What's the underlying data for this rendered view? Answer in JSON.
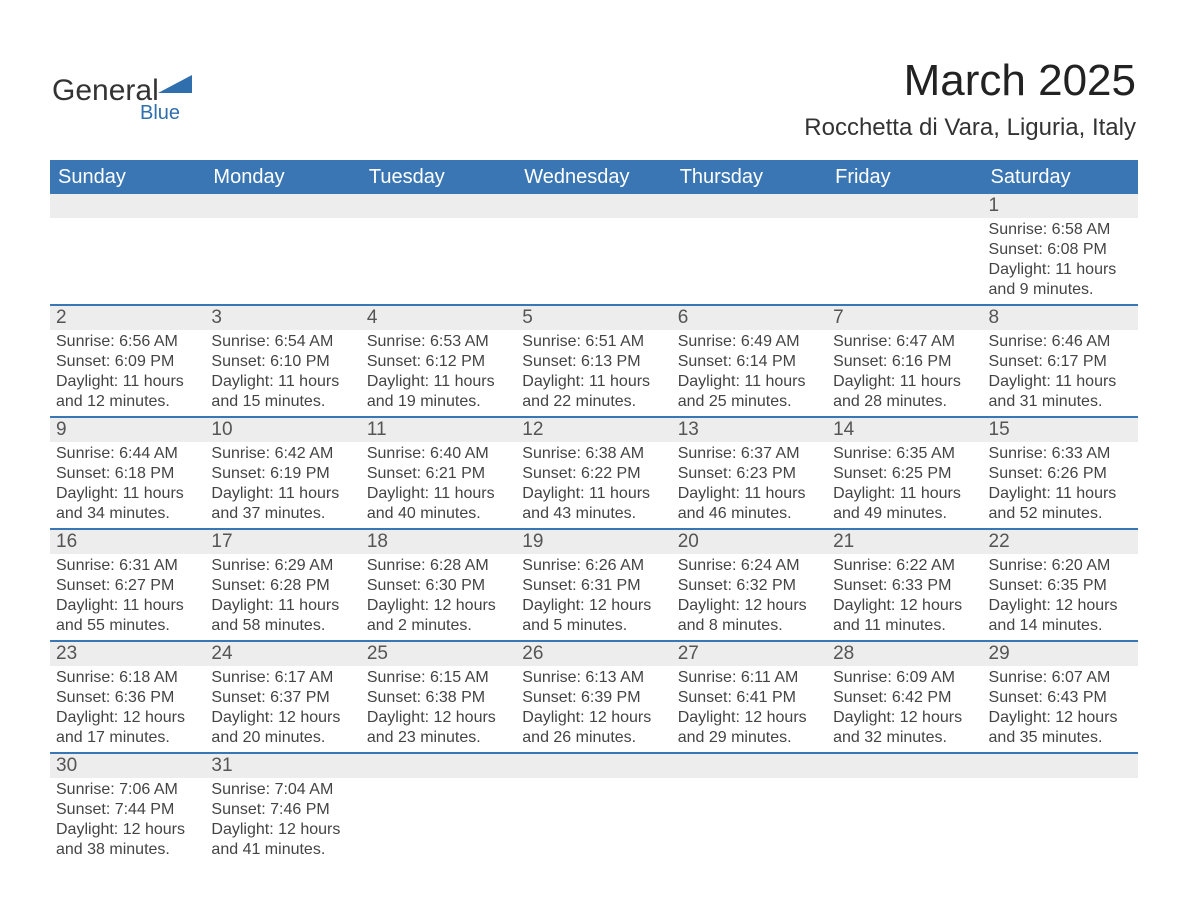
{
  "logo": {
    "text1": "General",
    "text2": "Blue",
    "brand_color": "#2f6fae"
  },
  "title": "March 2025",
  "subtitle": "Rocchetta di Vara, Liguria, Italy",
  "header_bg": "#3a76b3",
  "header_fg": "#ffffff",
  "stripe_bg": "#ededed",
  "divider_color": "#3a76b3",
  "text_color": "#444444",
  "days": [
    "Sunday",
    "Monday",
    "Tuesday",
    "Wednesday",
    "Thursday",
    "Friday",
    "Saturday"
  ],
  "weeks": [
    [
      null,
      null,
      null,
      null,
      null,
      null,
      {
        "n": "1",
        "sr": "6:58 AM",
        "ss": "6:08 PM",
        "dl": "11 hours and 9 minutes."
      }
    ],
    [
      {
        "n": "2",
        "sr": "6:56 AM",
        "ss": "6:09 PM",
        "dl": "11 hours and 12 minutes."
      },
      {
        "n": "3",
        "sr": "6:54 AM",
        "ss": "6:10 PM",
        "dl": "11 hours and 15 minutes."
      },
      {
        "n": "4",
        "sr": "6:53 AM",
        "ss": "6:12 PM",
        "dl": "11 hours and 19 minutes."
      },
      {
        "n": "5",
        "sr": "6:51 AM",
        "ss": "6:13 PM",
        "dl": "11 hours and 22 minutes."
      },
      {
        "n": "6",
        "sr": "6:49 AM",
        "ss": "6:14 PM",
        "dl": "11 hours and 25 minutes."
      },
      {
        "n": "7",
        "sr": "6:47 AM",
        "ss": "6:16 PM",
        "dl": "11 hours and 28 minutes."
      },
      {
        "n": "8",
        "sr": "6:46 AM",
        "ss": "6:17 PM",
        "dl": "11 hours and 31 minutes."
      }
    ],
    [
      {
        "n": "9",
        "sr": "6:44 AM",
        "ss": "6:18 PM",
        "dl": "11 hours and 34 minutes."
      },
      {
        "n": "10",
        "sr": "6:42 AM",
        "ss": "6:19 PM",
        "dl": "11 hours and 37 minutes."
      },
      {
        "n": "11",
        "sr": "6:40 AM",
        "ss": "6:21 PM",
        "dl": "11 hours and 40 minutes."
      },
      {
        "n": "12",
        "sr": "6:38 AM",
        "ss": "6:22 PM",
        "dl": "11 hours and 43 minutes."
      },
      {
        "n": "13",
        "sr": "6:37 AM",
        "ss": "6:23 PM",
        "dl": "11 hours and 46 minutes."
      },
      {
        "n": "14",
        "sr": "6:35 AM",
        "ss": "6:25 PM",
        "dl": "11 hours and 49 minutes."
      },
      {
        "n": "15",
        "sr": "6:33 AM",
        "ss": "6:26 PM",
        "dl": "11 hours and 52 minutes."
      }
    ],
    [
      {
        "n": "16",
        "sr": "6:31 AM",
        "ss": "6:27 PM",
        "dl": "11 hours and 55 minutes."
      },
      {
        "n": "17",
        "sr": "6:29 AM",
        "ss": "6:28 PM",
        "dl": "11 hours and 58 minutes."
      },
      {
        "n": "18",
        "sr": "6:28 AM",
        "ss": "6:30 PM",
        "dl": "12 hours and 2 minutes."
      },
      {
        "n": "19",
        "sr": "6:26 AM",
        "ss": "6:31 PM",
        "dl": "12 hours and 5 minutes."
      },
      {
        "n": "20",
        "sr": "6:24 AM",
        "ss": "6:32 PM",
        "dl": "12 hours and 8 minutes."
      },
      {
        "n": "21",
        "sr": "6:22 AM",
        "ss": "6:33 PM",
        "dl": "12 hours and 11 minutes."
      },
      {
        "n": "22",
        "sr": "6:20 AM",
        "ss": "6:35 PM",
        "dl": "12 hours and 14 minutes."
      }
    ],
    [
      {
        "n": "23",
        "sr": "6:18 AM",
        "ss": "6:36 PM",
        "dl": "12 hours and 17 minutes."
      },
      {
        "n": "24",
        "sr": "6:17 AM",
        "ss": "6:37 PM",
        "dl": "12 hours and 20 minutes."
      },
      {
        "n": "25",
        "sr": "6:15 AM",
        "ss": "6:38 PM",
        "dl": "12 hours and 23 minutes."
      },
      {
        "n": "26",
        "sr": "6:13 AM",
        "ss": "6:39 PM",
        "dl": "12 hours and 26 minutes."
      },
      {
        "n": "27",
        "sr": "6:11 AM",
        "ss": "6:41 PM",
        "dl": "12 hours and 29 minutes."
      },
      {
        "n": "28",
        "sr": "6:09 AM",
        "ss": "6:42 PM",
        "dl": "12 hours and 32 minutes."
      },
      {
        "n": "29",
        "sr": "6:07 AM",
        "ss": "6:43 PM",
        "dl": "12 hours and 35 minutes."
      }
    ],
    [
      {
        "n": "30",
        "sr": "7:06 AM",
        "ss": "7:44 PM",
        "dl": "12 hours and 38 minutes."
      },
      {
        "n": "31",
        "sr": "7:04 AM",
        "ss": "7:46 PM",
        "dl": "12 hours and 41 minutes."
      },
      null,
      null,
      null,
      null,
      null
    ]
  ],
  "labels": {
    "sunrise": "Sunrise: ",
    "sunset": "Sunset: ",
    "daylight": "Daylight: "
  }
}
